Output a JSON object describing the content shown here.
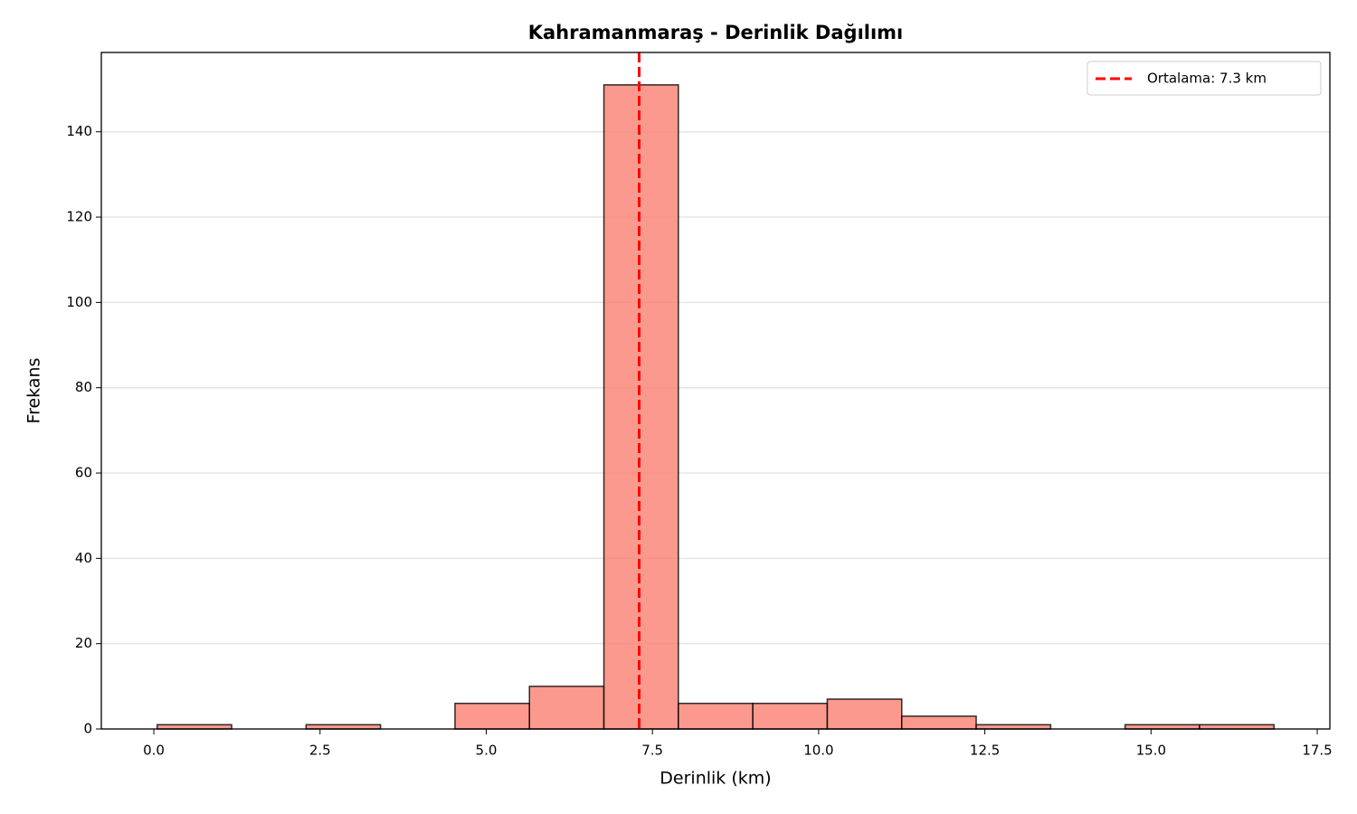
{
  "chart_data": {
    "type": "histogram",
    "title": "Kahramanmaraş - Derinlik Dağılımı",
    "xlabel": "Derinlik (km)",
    "ylabel": "Frekans",
    "bins": [
      0.05,
      1.17,
      2.29,
      3.41,
      4.53,
      5.65,
      6.77,
      7.89,
      9.01,
      10.13,
      11.25,
      12.37,
      13.49,
      14.61,
      15.73,
      16.85
    ],
    "values": [
      1,
      0,
      1,
      0,
      6,
      10,
      151,
      6,
      6,
      7,
      3,
      1,
      0,
      1,
      1
    ],
    "color": "#fa8072",
    "edgecolor": "#000000",
    "xlim": [
      -0.79,
      17.69
    ],
    "xticks": [
      {
        "value": 0,
        "label": "0.0"
      },
      2.5,
      {
        "value": 5,
        "label": "5.0"
      },
      7.5,
      {
        "value": 10,
        "label": "10.0"
      },
      12.5,
      {
        "value": 15,
        "label": "15.0"
      },
      17.5
    ],
    "ylim": [
      0,
      158.6
    ],
    "yticks": [
      0,
      20,
      40,
      60,
      80,
      100,
      120,
      140
    ],
    "grid": true,
    "mean_line": {
      "value": 7.3,
      "label": "Ortalama: 7.3 km",
      "color": "#ff0000"
    },
    "legend": "upper right"
  }
}
